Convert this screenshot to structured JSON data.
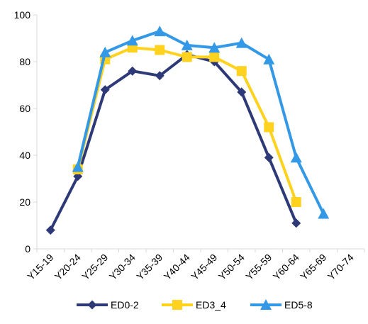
{
  "chart_data": {
    "type": "line",
    "title": "",
    "xlabel": "",
    "ylabel": "",
    "ylim": [
      0,
      100
    ],
    "yticks": [
      0,
      20,
      40,
      60,
      80,
      100
    ],
    "categories": [
      "Y15-19",
      "Y20-24",
      "Y25-29",
      "Y30-34",
      "Y35-39",
      "Y40-44",
      "Y45-49",
      "Y50-54",
      "Y55-59",
      "Y60-64",
      "Y65-69",
      "Y70-74"
    ],
    "grid": false,
    "legend_position": "bottom",
    "series": [
      {
        "name": "ED0-2",
        "color": "#2E3A78",
        "marker": "diamond",
        "values": [
          8,
          31,
          68,
          76,
          74,
          83,
          80,
          67,
          39,
          11,
          null,
          null
        ]
      },
      {
        "name": "ED3_4",
        "color": "#FFD21F",
        "marker": "square",
        "values": [
          null,
          34,
          81,
          86,
          85,
          82,
          82,
          76,
          52,
          20,
          null,
          null
        ]
      },
      {
        "name": "ED5-8",
        "color": "#3399E6",
        "marker": "triangle",
        "values": [
          null,
          35,
          84,
          89,
          93,
          87,
          86,
          88,
          81,
          39,
          15,
          null
        ]
      }
    ]
  }
}
